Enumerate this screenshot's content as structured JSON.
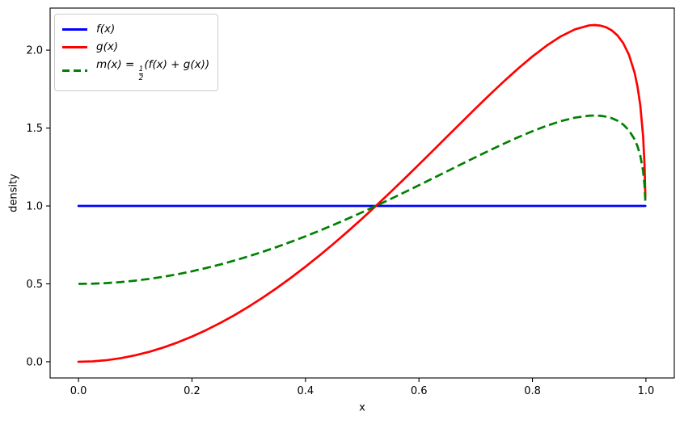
{
  "figure": {
    "background": "#ffffff",
    "text_color": "#000000",
    "spine_color": "#000000"
  },
  "legend": {
    "border_color": "#cccccc",
    "items": [
      {
        "label": "f(x)",
        "color": "#0000ff",
        "style": "solid"
      },
      {
        "label": "g(x)",
        "color": "#ff0000",
        "style": "solid"
      },
      {
        "label": "m(x) = 1/2(f(x) + g(x))",
        "label_prefix": "m(x) = ",
        "frac_num": "1",
        "frac_den": "2",
        "label_suffix": "(f(x) + g(x))",
        "color": "#008000",
        "style": "dashed"
      }
    ]
  },
  "chart_data": {
    "type": "line",
    "title": "",
    "xlabel": "x",
    "ylabel": "density",
    "xlim": [
      -0.05,
      1.05
    ],
    "ylim": [
      -0.104,
      2.27
    ],
    "grid": false,
    "legend_position": "upper left",
    "x_ticks": [
      0.0,
      0.2,
      0.4,
      0.6,
      0.8,
      1.0
    ],
    "x_tick_labels": [
      "0.0",
      "0.2",
      "0.4",
      "0.6",
      "0.8",
      "1.0"
    ],
    "y_ticks": [
      0.0,
      0.5,
      1.0,
      1.5,
      2.0
    ],
    "y_tick_labels": [
      "0.0",
      "0.5",
      "1.0",
      "1.5",
      "2.0"
    ],
    "x": [
      0.0,
      0.025,
      0.05,
      0.075,
      0.1,
      0.125,
      0.15,
      0.175,
      0.2,
      0.225,
      0.25,
      0.275,
      0.3,
      0.325,
      0.35,
      0.375,
      0.4,
      0.425,
      0.45,
      0.475,
      0.5,
      0.525,
      0.55,
      0.575,
      0.6,
      0.625,
      0.65,
      0.675,
      0.7,
      0.725,
      0.75,
      0.775,
      0.8,
      0.825,
      0.85,
      0.875,
      0.9,
      0.91,
      0.92,
      0.93,
      0.94,
      0.95,
      0.96,
      0.97,
      0.98,
      0.985,
      0.99,
      0.995,
      0.9975,
      0.999
    ],
    "series": [
      {
        "name": "f(x)",
        "color": "#0000ff",
        "style": "solid",
        "values": [
          1.0,
          1.0,
          1.0,
          1.0,
          1.0,
          1.0,
          1.0,
          1.0,
          1.0,
          1.0,
          1.0,
          1.0,
          1.0,
          1.0,
          1.0,
          1.0,
          1.0,
          1.0,
          1.0,
          1.0,
          1.0,
          1.0,
          1.0,
          1.0,
          1.0,
          1.0,
          1.0,
          1.0,
          1.0,
          1.0,
          1.0,
          1.0,
          1.0,
          1.0,
          1.0,
          1.0,
          1.0,
          1.0,
          1.0,
          1.0,
          1.0,
          1.0,
          1.0,
          1.0,
          1.0,
          1.0,
          1.0,
          1.0,
          1.0,
          1.0
        ]
      },
      {
        "name": "g(x)",
        "color": "#ff0000",
        "style": "solid",
        "values": [
          0.0,
          0.0026,
          0.0105,
          0.0234,
          0.0414,
          0.0643,
          0.092,
          0.1245,
          0.1616,
          0.2032,
          0.2493,
          0.2995,
          0.354,
          0.4124,
          0.4747,
          0.5407,
          0.6102,
          0.6831,
          0.759,
          0.8378,
          0.9193,
          1.0033,
          1.0892,
          1.177,
          1.266,
          1.3562,
          1.4466,
          1.537,
          1.6268,
          1.7151,
          1.8006,
          1.8826,
          1.9594,
          2.0287,
          2.0884,
          2.1337,
          2.1588,
          2.1611,
          2.1573,
          2.1464,
          2.1262,
          2.0939,
          2.0449,
          1.9711,
          1.8552,
          1.7693,
          1.6482,
          1.4493,
          1.2681,
          1.059
        ]
      },
      {
        "name": "m(x) = 1/2(f(x) + g(x))",
        "color": "#008000",
        "style": "dashed",
        "values": [
          0.5,
          0.5013,
          0.5052,
          0.5117,
          0.5207,
          0.5321,
          0.546,
          0.5622,
          0.5808,
          0.6016,
          0.6246,
          0.6498,
          0.677,
          0.7062,
          0.7374,
          0.7704,
          0.8051,
          0.8416,
          0.8795,
          0.9189,
          0.9596,
          1.0016,
          1.0446,
          1.0885,
          1.133,
          1.1781,
          1.2233,
          1.2685,
          1.3134,
          1.3576,
          1.4003,
          1.4413,
          1.4797,
          1.5144,
          1.5442,
          1.5668,
          1.5794,
          1.5805,
          1.5786,
          1.5732,
          1.5631,
          1.5469,
          1.5224,
          1.4856,
          1.4276,
          1.3847,
          1.3241,
          1.2246,
          1.1341,
          1.0295
        ]
      }
    ]
  }
}
